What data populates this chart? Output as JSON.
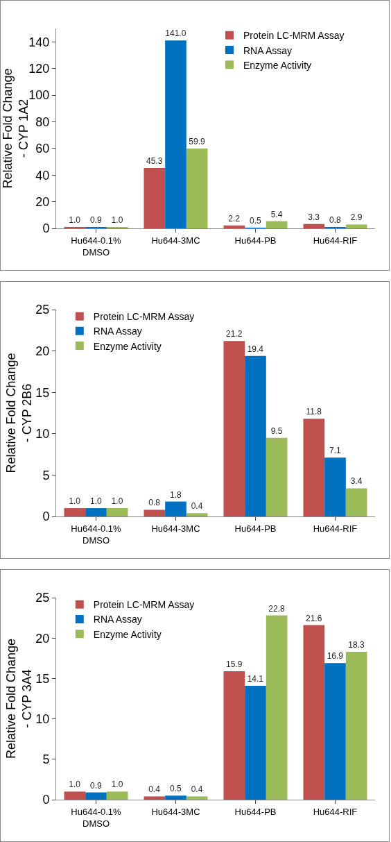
{
  "chart_data": [
    {
      "type": "bar",
      "ylabel": "Relative Fold Change\n- CYP 1A2",
      "categories": [
        "Hu644-0.1% DMSO",
        "Hu644-3MC",
        "Hu644-PB",
        "Hu644-RIF"
      ],
      "ylim": [
        0,
        150
      ],
      "yticks": [
        0,
        20,
        40,
        60,
        80,
        100,
        120,
        140
      ],
      "grid": false,
      "legend": "top right",
      "series": [
        {
          "name": "Protein LC-MRM Assay",
          "color": "#c0504d",
          "values": [
            1.0,
            45.3,
            2.2,
            3.3
          ],
          "value_labels": [
            "1.0",
            "45.3",
            "2.2",
            "3.3"
          ]
        },
        {
          "name": "RNA Assay",
          "color": "#0070c0",
          "values": [
            0.9,
            141.0,
            0.5,
            0.8
          ],
          "value_labels": [
            "0.9",
            "141.0",
            "0.5",
            "0.8"
          ]
        },
        {
          "name": "Enzyme Activity",
          "color": "#9bbb59",
          "values": [
            1.0,
            59.9,
            5.4,
            2.9
          ],
          "value_labels": [
            "1.0",
            "59.9",
            "5.4",
            "2.9"
          ]
        }
      ]
    },
    {
      "type": "bar",
      "ylabel": "Relative Fold Change\n- CYP 2B6",
      "categories": [
        "Hu644-0.1% DMSO",
        "Hu644-3MC",
        "Hu644-PB",
        "Hu644-RIF"
      ],
      "ylim": [
        0,
        25
      ],
      "yticks": [
        0,
        5,
        10,
        15,
        20,
        25
      ],
      "grid": false,
      "legend": "top left",
      "series": [
        {
          "name": "Protein LC-MRM Assay",
          "color": "#c0504d",
          "values": [
            1.0,
            0.8,
            21.2,
            11.8
          ],
          "value_labels": [
            "1.0",
            "0.8",
            "21.2",
            "11.8"
          ]
        },
        {
          "name": "RNA Assay",
          "color": "#0070c0",
          "values": [
            1.0,
            1.8,
            19.4,
            7.1
          ],
          "value_labels": [
            "1.0",
            "1.8",
            "19.4",
            "7.1"
          ]
        },
        {
          "name": "Enzyme Activity",
          "color": "#9bbb59",
          "values": [
            1.0,
            0.4,
            9.5,
            3.4
          ],
          "value_labels": [
            "1.0",
            "0.4",
            "9.5",
            "3.4"
          ]
        }
      ]
    },
    {
      "type": "bar",
      "ylabel": "Relative Fold Change\n- CYP 3A4",
      "categories": [
        "Hu644-0.1% DMSO",
        "Hu644-3MC",
        "Hu644-PB",
        "Hu644-RIF"
      ],
      "ylim": [
        0,
        25
      ],
      "yticks": [
        0,
        5,
        10,
        15,
        20,
        25
      ],
      "grid": false,
      "legend": "top left",
      "series": [
        {
          "name": "Protein LC-MRM Assay",
          "color": "#c0504d",
          "values": [
            1.0,
            0.4,
            15.9,
            21.6
          ],
          "value_labels": [
            "1.0",
            "0.4",
            "15.9",
            "21.6"
          ]
        },
        {
          "name": "RNA Assay",
          "color": "#0070c0",
          "values": [
            0.9,
            0.5,
            14.1,
            16.9
          ],
          "value_labels": [
            "0.9",
            "0.5",
            "14.1",
            "16.9"
          ]
        },
        {
          "name": "Enzyme Activity",
          "color": "#9bbb59",
          "values": [
            1.0,
            0.4,
            22.8,
            18.3
          ],
          "value_labels": [
            "1.0",
            "0.4",
            "22.8",
            "18.3"
          ]
        }
      ]
    }
  ]
}
